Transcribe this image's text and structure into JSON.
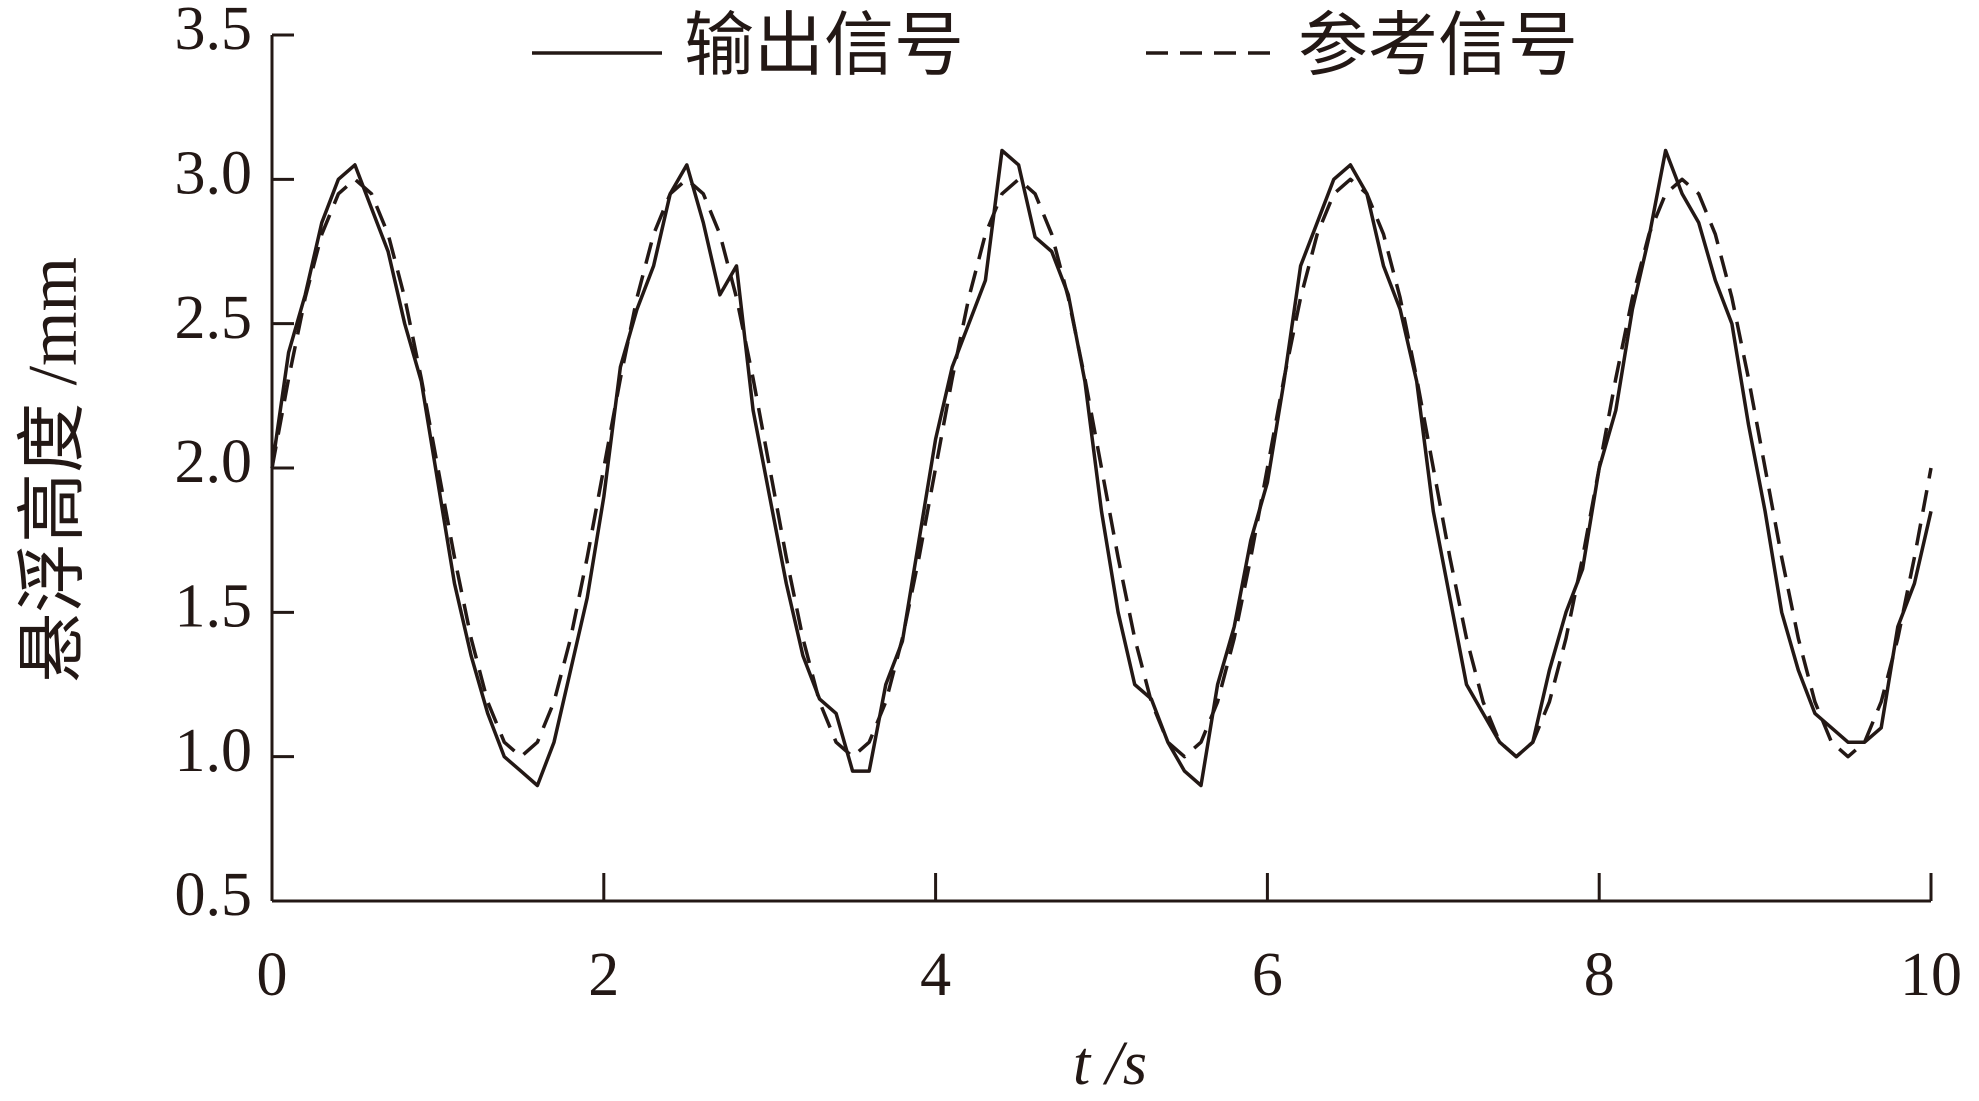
{
  "chart_data": {
    "type": "line",
    "x_label": "t /s",
    "y_label": "悬浮高度 /mm",
    "x": [
      0,
      0.1,
      0.2,
      0.3,
      0.4,
      0.5,
      0.6,
      0.7,
      0.8,
      0.9,
      1,
      1.1,
      1.2,
      1.3,
      1.4,
      1.5,
      1.6,
      1.7,
      1.8,
      1.9,
      2,
      2.1,
      2.2,
      2.3,
      2.4,
      2.5,
      2.6,
      2.7,
      2.8,
      2.9,
      3,
      3.1,
      3.2,
      3.3,
      3.4,
      3.5,
      3.6,
      3.7,
      3.8,
      3.9,
      4,
      4.1,
      4.2,
      4.3,
      4.4,
      4.5,
      4.6,
      4.7,
      4.8,
      4.9,
      5,
      5.1,
      5.2,
      5.3,
      5.4,
      5.5,
      5.6,
      5.7,
      5.8,
      5.9,
      6,
      6.1,
      6.2,
      6.3,
      6.4,
      6.5,
      6.6,
      6.7,
      6.8,
      6.9,
      7,
      7.1,
      7.2,
      7.3,
      7.4,
      7.5,
      7.6,
      7.7,
      7.8,
      7.9,
      8,
      8.1,
      8.2,
      8.3,
      8.4,
      8.5,
      8.6,
      8.7,
      8.8,
      8.9,
      9,
      9.1,
      9.2,
      9.3,
      9.4,
      9.5,
      9.6,
      9.7,
      9.8,
      9.9,
      10
    ],
    "series": [
      {
        "name": "输出信号",
        "color": "#231815",
        "dash": false,
        "values": [
          2.0,
          2.4,
          2.6,
          2.85,
          3.0,
          3.05,
          2.9,
          2.75,
          2.5,
          2.3,
          1.95,
          1.6,
          1.35,
          1.15,
          1.0,
          0.95,
          0.9,
          1.05,
          1.3,
          1.55,
          1.9,
          2.35,
          2.55,
          2.7,
          2.95,
          3.05,
          2.85,
          2.6,
          2.7,
          2.2,
          1.9,
          1.6,
          1.35,
          1.2,
          1.15,
          0.95,
          0.95,
          1.25,
          1.4,
          1.75,
          2.1,
          2.35,
          2.5,
          2.65,
          3.1,
          3.05,
          2.8,
          2.75,
          2.6,
          2.3,
          1.85,
          1.5,
          1.25,
          1.2,
          1.05,
          0.95,
          0.9,
          1.25,
          1.45,
          1.75,
          1.95,
          2.3,
          2.7,
          2.85,
          3.0,
          3.05,
          2.95,
          2.7,
          2.55,
          2.3,
          1.85,
          1.55,
          1.25,
          1.15,
          1.05,
          1.0,
          1.05,
          1.3,
          1.5,
          1.65,
          2.0,
          2.2,
          2.55,
          2.8,
          3.1,
          2.95,
          2.85,
          2.65,
          2.5,
          2.15,
          1.85,
          1.5,
          1.3,
          1.15,
          1.1,
          1.05,
          1.05,
          1.1,
          1.45,
          1.6,
          1.85
        ]
      },
      {
        "name": "参考信号",
        "color": "#231815",
        "dash": true,
        "values": [
          2,
          2.31,
          2.59,
          2.81,
          2.95,
          3,
          2.95,
          2.81,
          2.59,
          2.31,
          2,
          1.69,
          1.41,
          1.19,
          1.05,
          1,
          1.05,
          1.19,
          1.41,
          1.69,
          2,
          2.31,
          2.59,
          2.81,
          2.95,
          3,
          2.95,
          2.81,
          2.59,
          2.31,
          2,
          1.69,
          1.41,
          1.19,
          1.05,
          1,
          1.05,
          1.19,
          1.41,
          1.69,
          2,
          2.31,
          2.59,
          2.81,
          2.95,
          3,
          2.95,
          2.81,
          2.59,
          2.31,
          2,
          1.69,
          1.41,
          1.19,
          1.05,
          1,
          1.05,
          1.19,
          1.41,
          1.69,
          2,
          2.31,
          2.59,
          2.81,
          2.95,
          3,
          2.95,
          2.81,
          2.59,
          2.31,
          2,
          1.69,
          1.41,
          1.19,
          1.05,
          1,
          1.05,
          1.19,
          1.41,
          1.69,
          2,
          2.31,
          2.59,
          2.81,
          2.95,
          3,
          2.95,
          2.81,
          2.59,
          2.31,
          2,
          1.69,
          1.41,
          1.19,
          1.05,
          1,
          1.05,
          1.19,
          1.41,
          1.69,
          2
        ]
      }
    ],
    "xlim": [
      0,
      10
    ],
    "xticks": [
      0,
      2,
      4,
      6,
      8,
      10
    ],
    "ylim": [
      0.5,
      3.5
    ],
    "yticks": [
      0.5,
      {
        "value": 1,
        "label": "1.0"
      },
      1.5,
      {
        "value": 2,
        "label": "2.0"
      },
      2.5,
      {
        "value": 3,
        "label": "3.0"
      },
      3.5
    ]
  }
}
